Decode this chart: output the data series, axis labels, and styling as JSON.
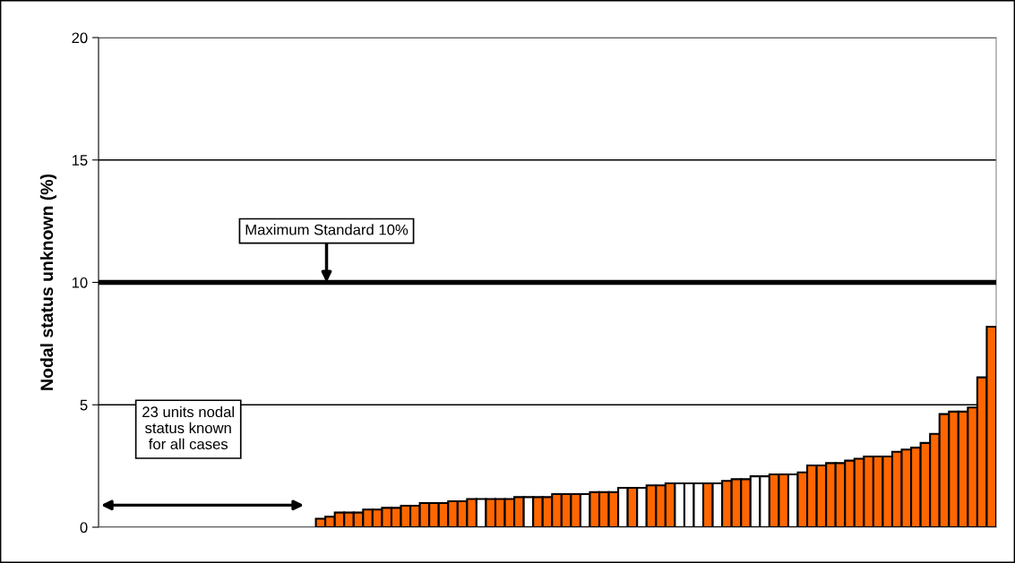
{
  "chart_data": {
    "type": "bar",
    "ylabel": "Nodal status unknown (%)",
    "categories": [
      null,
      null,
      null,
      null,
      null,
      null,
      null,
      null,
      null,
      null,
      null,
      null,
      null,
      null,
      null,
      null,
      null,
      null,
      null,
      null,
      null,
      null,
      null,
      null,
      null,
      null,
      null,
      null,
      null,
      null,
      null,
      null,
      null,
      null,
      null,
      null,
      null,
      null,
      null,
      null,
      null,
      null,
      null,
      null,
      null,
      null,
      null,
      null,
      null,
      null,
      null,
      null,
      null,
      null,
      null,
      null,
      null,
      null,
      null,
      null,
      null,
      null,
      null,
      null,
      null,
      null,
      null,
      null,
      null,
      null,
      null,
      null,
      null,
      null,
      null,
      null,
      null,
      null,
      null,
      null,
      null,
      null,
      null,
      null,
      null,
      null,
      null,
      null,
      null,
      null,
      null,
      null,
      null,
      null,
      null
    ],
    "values": [
      0,
      0,
      0,
      0,
      0,
      0,
      0,
      0,
      0,
      0,
      0,
      0,
      0,
      0,
      0,
      0,
      0,
      0,
      0,
      0,
      0,
      0,
      0,
      0.35,
      0.43,
      0.6,
      0.6,
      0.6,
      0.72,
      0.72,
      0.79,
      0.79,
      0.88,
      0.88,
      0.99,
      0.99,
      0.99,
      1.06,
      1.06,
      1.15,
      1.15,
      1.15,
      1.15,
      1.15,
      1.23,
      1.23,
      1.23,
      1.23,
      1.35,
      1.35,
      1.35,
      1.35,
      1.43,
      1.43,
      1.43,
      1.61,
      1.61,
      1.61,
      1.71,
      1.71,
      1.79,
      1.79,
      1.79,
      1.79,
      1.79,
      1.79,
      1.89,
      1.96,
      1.96,
      2.08,
      2.08,
      2.16,
      2.16,
      2.16,
      2.24,
      2.52,
      2.52,
      2.62,
      2.62,
      2.72,
      2.8,
      2.89,
      2.89,
      2.89,
      3.08,
      3.17,
      3.25,
      3.44,
      3.81,
      4.62,
      4.72,
      4.72,
      4.89,
      6.12,
      8.19
    ],
    "colors": [
      "#ff6600",
      "#ff6600",
      "#ff6600",
      "#ff6600",
      "#ff6600",
      "#ff6600",
      "#ff6600",
      "#ff6600",
      "#ff6600",
      "#ff6600",
      "#ff6600",
      "#ff6600",
      "#ff6600",
      "#ff6600",
      "#ff6600",
      "#ff6600",
      "#ff6600",
      "#ff6600",
      "#ff6600",
      "#ff6600",
      "#ff6600",
      "#ff6600",
      "#ff6600",
      "#ff6600",
      "#ff6600",
      "#ff6600",
      "#ff6600",
      "#ff6600",
      "#ff6600",
      "#ff6600",
      "#ff6600",
      "#ff6600",
      "#ff6600",
      "#ff6600",
      "#ff6600",
      "#ff6600",
      "#ff6600",
      "#ff6600",
      "#ff6600",
      "#ff6600",
      "#ffffff",
      "#ff6600",
      "#ff6600",
      "#ff6600",
      "#ff6600",
      "#ffffff",
      "#ff6600",
      "#ff6600",
      "#ff6600",
      "#ff6600",
      "#ff6600",
      "#ffffff",
      "#ff6600",
      "#ff6600",
      "#ff6600",
      "#ffffff",
      "#ff6600",
      "#ffffff",
      "#ff6600",
      "#ff6600",
      "#ff6600",
      "#ffffff",
      "#ffffff",
      "#ffffff",
      "#ff6600",
      "#ffffff",
      "#ff6600",
      "#ff6600",
      "#ff6600",
      "#ffffff",
      "#ffffff",
      "#ff6600",
      "#ff6600",
      "#ffffff",
      "#ff6600",
      "#ff6600",
      "#ff6600",
      "#ff6600",
      "#ff6600",
      "#ff6600",
      "#ff6600",
      "#ff6600",
      "#ff6600",
      "#ff6600",
      "#ff6600",
      "#ff6600",
      "#ff6600",
      "#ff6600",
      "#ff6600",
      "#ff6600",
      "#ff6600",
      "#ff6600",
      "#ff6600",
      "#ff6600",
      "#ff6600"
    ],
    "ylim": [
      0,
      20
    ],
    "yticks": [
      0,
      5,
      10,
      15,
      20
    ],
    "grid": "y",
    "tick_labels": "y",
    "ref_lines": [
      {
        "axis": "y",
        "value": 10,
        "label": "Maximum Standard 10%",
        "color": "#000000"
      }
    ],
    "annotations": [
      "23 units nodal\nstatus known\nfor all cases"
    ]
  }
}
